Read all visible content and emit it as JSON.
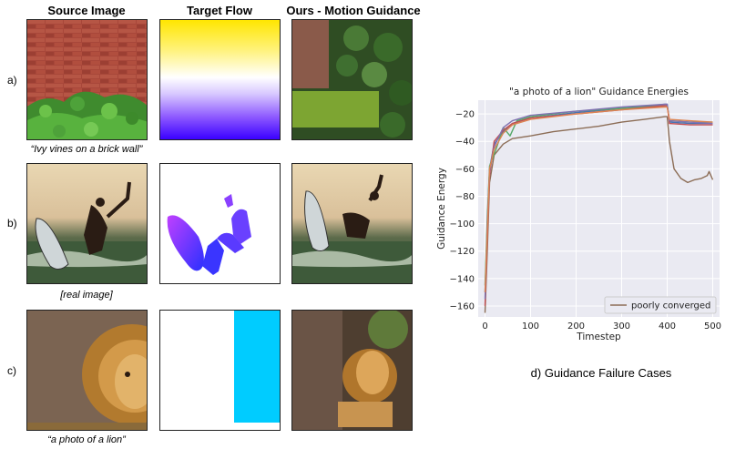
{
  "columns": [
    "Source Image",
    "Target Flow",
    "Ours - Motion Guidance"
  ],
  "rows": [
    {
      "label": "a)",
      "caption": "“Ivy vines on a brick wall”"
    },
    {
      "label": "b)",
      "caption": "[real image]"
    },
    {
      "label": "c)",
      "caption": "“a photo of a lion”"
    }
  ],
  "figure_caption": "d) Guidance Failure Cases",
  "chart_data": {
    "type": "line",
    "title": "\"a photo of a lion\" Guidance Energies",
    "xlabel": "Timestep",
    "ylabel": "Guidance Energy",
    "xlim": [
      -15,
      515
    ],
    "ylim": [
      -168,
      -10
    ],
    "xticks": [
      0,
      100,
      200,
      300,
      400,
      500
    ],
    "yticks": [
      -20,
      -40,
      -60,
      -80,
      -100,
      -120,
      -140,
      -160
    ],
    "grid": true,
    "legend": {
      "position": "bottom-right",
      "entries": [
        "poorly converged"
      ]
    },
    "series": [
      {
        "color": "#8c6d56",
        "legend": true,
        "points": [
          [
            0,
            -165
          ],
          [
            5,
            -120
          ],
          [
            10,
            -70
          ],
          [
            20,
            -50
          ],
          [
            40,
            -42
          ],
          [
            60,
            -38
          ],
          [
            100,
            -36
          ],
          [
            150,
            -33
          ],
          [
            200,
            -31
          ],
          [
            250,
            -29
          ],
          [
            300,
            -26
          ],
          [
            350,
            -24
          ],
          [
            395,
            -22
          ],
          [
            400,
            -22
          ],
          [
            405,
            -40
          ],
          [
            415,
            -60
          ],
          [
            430,
            -67
          ],
          [
            445,
            -70
          ],
          [
            460,
            -68
          ],
          [
            475,
            -67
          ],
          [
            488,
            -65
          ],
          [
            492,
            -62
          ],
          [
            500,
            -68
          ]
        ]
      },
      {
        "color": "#4c72b0",
        "points": [
          [
            0,
            -150
          ],
          [
            5,
            -100
          ],
          [
            10,
            -60
          ],
          [
            20,
            -42
          ],
          [
            40,
            -33
          ],
          [
            60,
            -27
          ],
          [
            100,
            -23
          ],
          [
            200,
            -19
          ],
          [
            300,
            -16
          ],
          [
            395,
            -13
          ],
          [
            400,
            -13
          ],
          [
            405,
            -26
          ],
          [
            450,
            -27
          ],
          [
            500,
            -27
          ]
        ]
      },
      {
        "color": "#55a868",
        "points": [
          [
            0,
            -145
          ],
          [
            5,
            -95
          ],
          [
            10,
            -58
          ],
          [
            25,
            -45
          ],
          [
            40,
            -30
          ],
          [
            55,
            -36
          ],
          [
            70,
            -25
          ],
          [
            100,
            -22
          ],
          [
            200,
            -18
          ],
          [
            300,
            -16
          ],
          [
            395,
            -14
          ],
          [
            400,
            -14
          ],
          [
            405,
            -25
          ],
          [
            450,
            -26
          ],
          [
            500,
            -26
          ]
        ]
      },
      {
        "color": "#c44e52",
        "points": [
          [
            0,
            -160
          ],
          [
            5,
            -110
          ],
          [
            10,
            -65
          ],
          [
            20,
            -40
          ],
          [
            40,
            -32
          ],
          [
            60,
            -27
          ],
          [
            100,
            -23
          ],
          [
            200,
            -20
          ],
          [
            300,
            -17
          ],
          [
            395,
            -14
          ],
          [
            400,
            -14
          ],
          [
            405,
            -27
          ],
          [
            450,
            -28
          ],
          [
            500,
            -28
          ]
        ]
      },
      {
        "color": "#8172b2",
        "points": [
          [
            0,
            -155
          ],
          [
            5,
            -100
          ],
          [
            10,
            -62
          ],
          [
            20,
            -44
          ],
          [
            40,
            -30
          ],
          [
            60,
            -25
          ],
          [
            100,
            -21
          ],
          [
            200,
            -18
          ],
          [
            300,
            -15
          ],
          [
            395,
            -13
          ],
          [
            400,
            -13
          ],
          [
            405,
            -25
          ],
          [
            450,
            -26
          ],
          [
            500,
            -27
          ]
        ]
      },
      {
        "color": "#dd8452",
        "points": [
          [
            0,
            -150
          ],
          [
            5,
            -105
          ],
          [
            10,
            -60
          ],
          [
            20,
            -46
          ],
          [
            40,
            -34
          ],
          [
            60,
            -28
          ],
          [
            100,
            -24
          ],
          [
            200,
            -20
          ],
          [
            300,
            -17
          ],
          [
            395,
            -15
          ],
          [
            400,
            -15
          ],
          [
            405,
            -24
          ],
          [
            450,
            -25
          ],
          [
            500,
            -26
          ]
        ]
      }
    ]
  }
}
